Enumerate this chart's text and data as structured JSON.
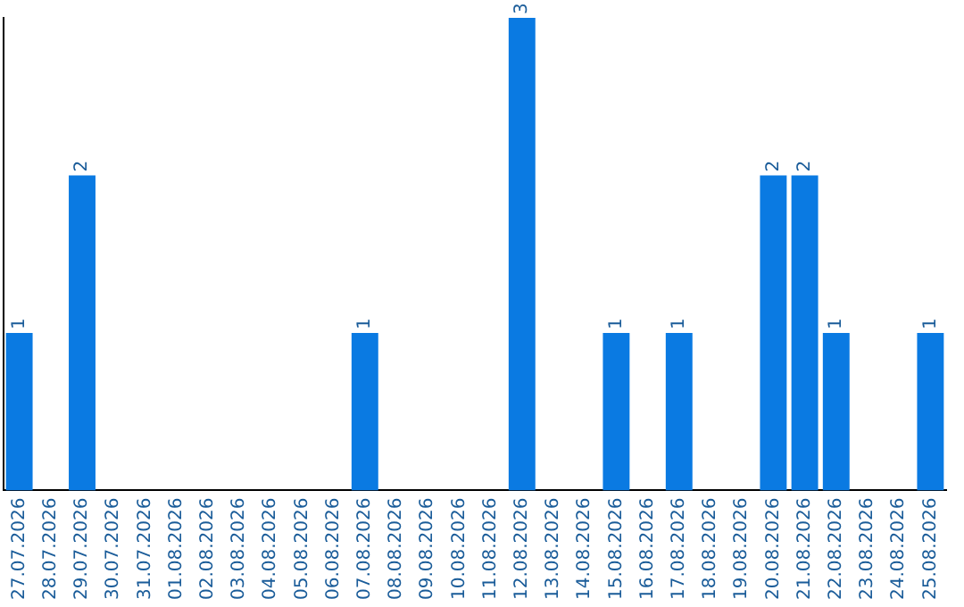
{
  "chart_data": {
    "type": "bar",
    "categories": [
      "27.07.2026",
      "28.07.2026",
      "29.07.2026",
      "30.07.2026",
      "31.07.2026",
      "01.08.2026",
      "02.08.2026",
      "03.08.2026",
      "04.08.2026",
      "05.08.2026",
      "06.08.2026",
      "07.08.2026",
      "08.08.2026",
      "09.08.2026",
      "10.08.2026",
      "11.08.2026",
      "12.08.2026",
      "13.08.2026",
      "14.08.2026",
      "15.08.2026",
      "16.08.2026",
      "17.08.2026",
      "18.08.2026",
      "19.08.2026",
      "20.08.2026",
      "21.08.2026",
      "22.08.2026",
      "23.08.2026",
      "24.08.2026",
      "25.08.2026"
    ],
    "values": [
      1,
      0,
      2,
      0,
      0,
      0,
      0,
      0,
      0,
      0,
      0,
      1,
      0,
      0,
      0,
      0,
      3,
      0,
      0,
      1,
      0,
      1,
      0,
      0,
      2,
      2,
      1,
      0,
      0,
      1
    ],
    "value_labels": [
      "1",
      null,
      "2",
      null,
      null,
      null,
      null,
      null,
      null,
      null,
      null,
      "1",
      null,
      null,
      null,
      null,
      "3",
      null,
      null,
      "1",
      null,
      "1",
      null,
      null,
      "2",
      "2",
      "1",
      null,
      null,
      "1"
    ],
    "color": "#0a7ae2",
    "grid": false,
    "legend": false,
    "tick_labels": "x"
  }
}
